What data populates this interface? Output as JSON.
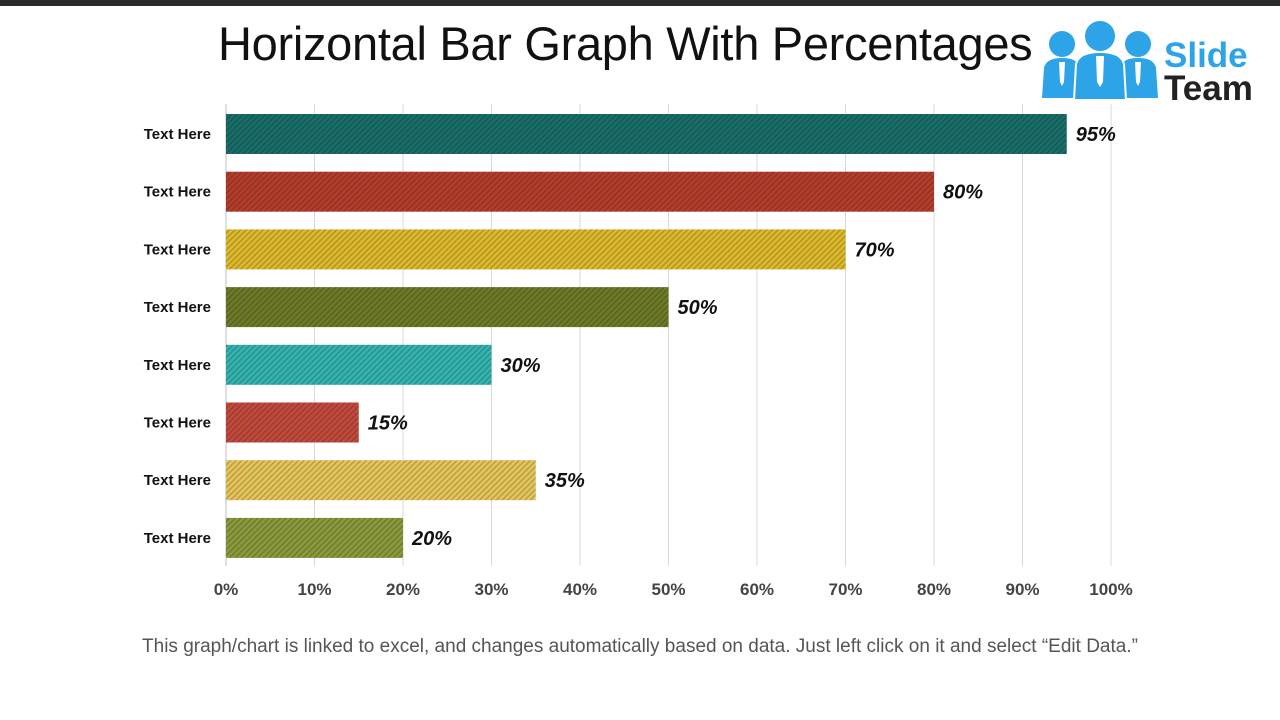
{
  "slide": {
    "title": "Horizontal Bar Graph With Percentages",
    "footnote": "This graph/chart is linked to excel, and changes automatically based on data. Just left click on it and select “Edit Data.”"
  },
  "logo": {
    "word_1": "Slide",
    "word_2": "Team",
    "icon": "people-group-icon",
    "colors": {
      "primary": "#2da3e8",
      "text": "#222222"
    }
  },
  "chart_data": {
    "type": "bar",
    "orientation": "horizontal",
    "title": "",
    "xlabel": "",
    "ylabel": "",
    "xlim": [
      0,
      100
    ],
    "x_ticks": [
      "0%",
      "10%",
      "20%",
      "30%",
      "40%",
      "50%",
      "60%",
      "70%",
      "80%",
      "90%",
      "100%"
    ],
    "grid": true,
    "legend": "none",
    "categories": [
      "Text Here",
      "Text Here",
      "Text Here",
      "Text Here",
      "Text Here",
      "Text Here",
      "Text Here",
      "Text Here"
    ],
    "values": [
      95,
      80,
      70,
      50,
      30,
      15,
      35,
      20
    ],
    "value_labels": [
      "95%",
      "80%",
      "70%",
      "50%",
      "30%",
      "15%",
      "35%",
      "20%"
    ],
    "colors": [
      "#1a6e6a",
      "#b53d2c",
      "#ddb92c",
      "#6e7a28",
      "#34b3af",
      "#c24a3c",
      "#e6c45a",
      "#8a9a3c"
    ],
    "bar_fill": "diagonal-hatch"
  }
}
